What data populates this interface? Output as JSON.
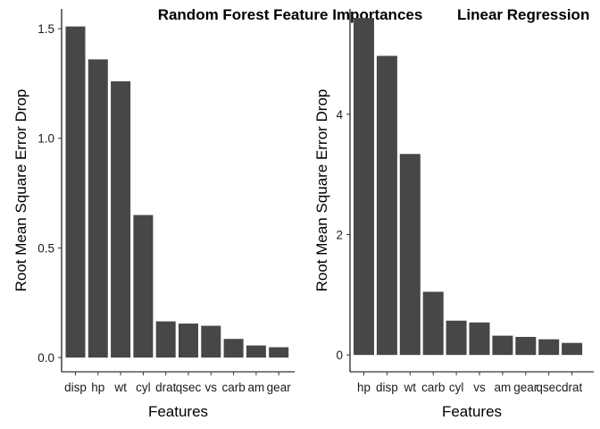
{
  "chart_data": [
    {
      "type": "bar",
      "title": "Random Forest Feature Importances",
      "xlabel": "Features",
      "ylabel": "Root Mean Square Error Drop",
      "categories": [
        "disp",
        "hp",
        "wt",
        "cyl",
        "drat",
        "qsec",
        "vs",
        "carb",
        "am",
        "gear"
      ],
      "values": [
        1.51,
        1.36,
        1.26,
        0.65,
        0.165,
        0.155,
        0.145,
        0.085,
        0.055,
        0.047
      ],
      "yticks": [
        0.0,
        0.5,
        1.0,
        1.5
      ],
      "ytick_labels": [
        "0.0",
        "0.5",
        "1.0",
        "1.5"
      ],
      "ylim": [
        -0.065,
        1.59
      ],
      "grid": false,
      "bar_color": "#474747"
    },
    {
      "type": "bar",
      "title": "Linear Regression",
      "xlabel": "Features",
      "ylabel": "Root Mean Square Error Drop",
      "categories": [
        "hp",
        "disp",
        "wt",
        "carb",
        "cyl",
        "vs",
        "am",
        "gear",
        "qsec",
        "drat"
      ],
      "values": [
        5.6,
        4.97,
        3.34,
        1.05,
        0.57,
        0.54,
        0.32,
        0.3,
        0.26,
        0.2
      ],
      "yticks": [
        0,
        2,
        4
      ],
      "ytick_labels": [
        "0",
        "2",
        "4"
      ],
      "ylim": [
        -0.28,
        5.75
      ],
      "grid": false,
      "bar_color": "#474747"
    }
  ]
}
